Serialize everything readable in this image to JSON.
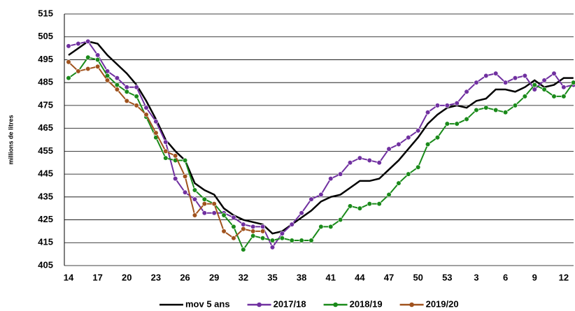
{
  "chart_data": {
    "type": "line",
    "y_label": "millions de litres",
    "categories": [
      "14",
      null,
      null,
      "17",
      null,
      null,
      "20",
      null,
      null,
      "23",
      null,
      null,
      "26",
      null,
      null,
      "29",
      null,
      null,
      "32",
      null,
      null,
      "35",
      null,
      null,
      "38",
      null,
      null,
      "41",
      null,
      null,
      "44",
      null,
      null,
      "47",
      null,
      null,
      "50",
      null,
      null,
      "53",
      null,
      null,
      "3",
      null,
      null,
      "6",
      null,
      null,
      "9",
      null,
      null,
      "12",
      null
    ],
    "ylim": [
      405,
      515
    ],
    "yticks": [
      405,
      415,
      425,
      435,
      445,
      455,
      465,
      475,
      485,
      495,
      505,
      515
    ],
    "grid": true,
    "series": [
      {
        "name": "mov 5 ans",
        "color": "#000000",
        "marker": false,
        "values": [
          497,
          500,
          503,
          502,
          497,
          493,
          489,
          484,
          477,
          469,
          460,
          455,
          451,
          441,
          438,
          436,
          430,
          427,
          425,
          424,
          423,
          419,
          420,
          423,
          426,
          429,
          433,
          435,
          436,
          439,
          442,
          442,
          443,
          447,
          451,
          456,
          461,
          467,
          471,
          474,
          475,
          474,
          477,
          478,
          482,
          482,
          481,
          483,
          486,
          483,
          484,
          487,
          487
        ]
      },
      {
        "name": "2017/18",
        "color": "#7030a0",
        "marker": true,
        "values": [
          501,
          502,
          503,
          497,
          490,
          487,
          483,
          483,
          474,
          468,
          459,
          443,
          437,
          434,
          428,
          428,
          428,
          426,
          423,
          422,
          422,
          413,
          419,
          423,
          428,
          434,
          436,
          443,
          445,
          450,
          452,
          451,
          450,
          456,
          458,
          461,
          464,
          472,
          475,
          475,
          476,
          481,
          485,
          488,
          489,
          485,
          487,
          488,
          482,
          486,
          489,
          483,
          484
        ]
      },
      {
        "name": "2018/19",
        "color": "#1a8a1a",
        "marker": true,
        "values": [
          487,
          490,
          496,
          495,
          488,
          484,
          481,
          479,
          470,
          461,
          452,
          451,
          451,
          438,
          434,
          432,
          427,
          422,
          412,
          418,
          417,
          416,
          417,
          416,
          416,
          416,
          422,
          422,
          425,
          431,
          430,
          432,
          432,
          436,
          441,
          445,
          448,
          458,
          461,
          467,
          467,
          469,
          473,
          474,
          473,
          472,
          475,
          479,
          484,
          482,
          479,
          479,
          485
        ]
      },
      {
        "name": "2019/20",
        "color": "#a0521d",
        "marker": true,
        "values": [
          494,
          490,
          491,
          492,
          486,
          482,
          477,
          475,
          471,
          463,
          455,
          453,
          444,
          427,
          432,
          432,
          420,
          417,
          421,
          420,
          420,
          null,
          null,
          null,
          null,
          null,
          null,
          null,
          null,
          null,
          null,
          null,
          null,
          null,
          null,
          null,
          null,
          null,
          null,
          null,
          null,
          null,
          null,
          null,
          null,
          null,
          null,
          null,
          null,
          null,
          null,
          null,
          null
        ]
      }
    ]
  }
}
